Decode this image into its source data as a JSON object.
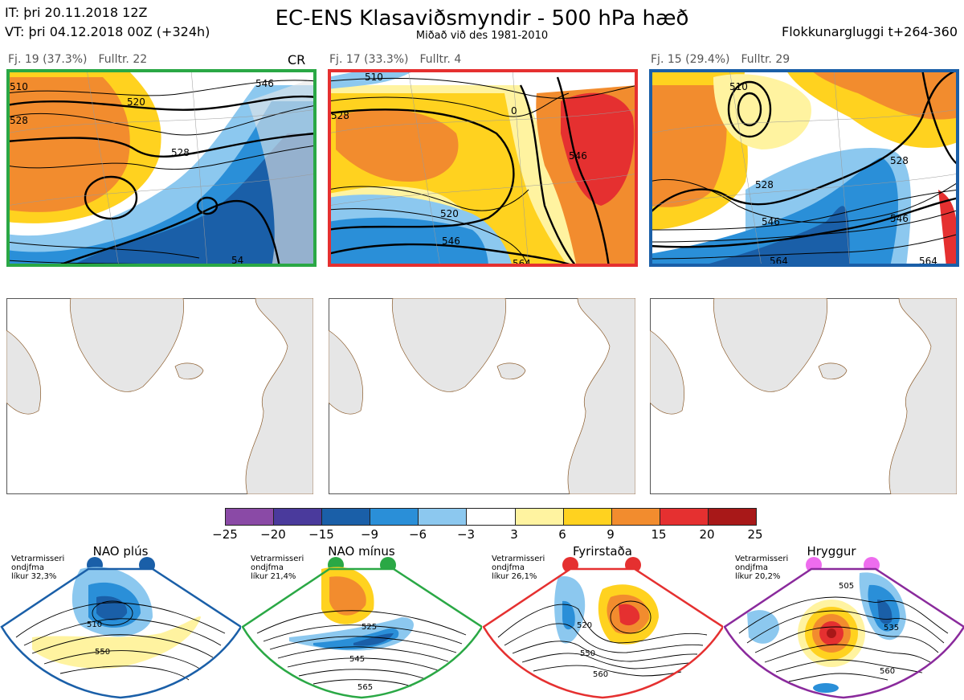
{
  "header": {
    "it_line": "IT: þri 20.11.2018 12Z",
    "vt_line": "VT: þri 04.12.2018 00Z  (+324h)",
    "title": "EC-ENS Klasaviðsmyndir - 500 hPa hæð",
    "subtitle": "Miðað við des 1981-2010",
    "window": "Flokkunargluggi t+264-360"
  },
  "clusters": [
    {
      "fj": "Fj. 19 (37.3%)",
      "fulltr": "Fulltr. 22",
      "tag": "CR",
      "border": "#2aa845",
      "contours": [
        "510",
        "520",
        "528",
        "528",
        "546",
        "54"
      ]
    },
    {
      "fj": "Fj. 17 (33.3%)",
      "fulltr": "Fulltr. 4",
      "tag": "",
      "border": "#e53030",
      "contours": [
        "510",
        "520",
        "528",
        "0",
        "546",
        "546",
        "564"
      ]
    },
    {
      "fj": "Fj. 15 (29.4%)",
      "fulltr": "Fulltr. 29",
      "tag": "",
      "border": "#1a5fa8",
      "contours": [
        "510",
        "528",
        "528",
        "546",
        "546",
        "564",
        "564"
      ]
    }
  ],
  "colorbar": {
    "colors": [
      "#8a4aa6",
      "#4a3a9c",
      "#1a5fa8",
      "#2a8fd8",
      "#8cc8ef",
      "#ffffff",
      "#fff3a0",
      "#ffd21f",
      "#f28c2e",
      "#e53030",
      "#a81818"
    ],
    "ticks": [
      "−25",
      "−20",
      "−15",
      "−9",
      "−6",
      "−3",
      "3",
      "6",
      "9",
      "15",
      "20",
      "25"
    ]
  },
  "regimes": [
    {
      "name": "NAO plús",
      "stat": [
        "Vetrarmisseri",
        "ondjfma",
        "líkur 32,3%"
      ],
      "color": "#1a5fa8",
      "contours": [
        "510",
        "550"
      ]
    },
    {
      "name": "NAO mínus",
      "stat": [
        "Vetrarmisseri",
        "ondjfma",
        "líkur 21,4%"
      ],
      "color": "#2aa845",
      "contours": [
        "525",
        "545",
        "565"
      ]
    },
    {
      "name": "Fyrirstaða",
      "stat": [
        "Vetrarmisseri",
        "ondjfma",
        "líkur 26,1%"
      ],
      "color": "#e53030",
      "contours": [
        "520",
        "550",
        "560"
      ]
    },
    {
      "name": "Hryggur",
      "stat": [
        "Vetrarmisseri",
        "ondjfma",
        "líkur 20,2%"
      ],
      "color": "#8a2a9c",
      "contours": [
        "505",
        "535",
        "560"
      ]
    }
  ]
}
